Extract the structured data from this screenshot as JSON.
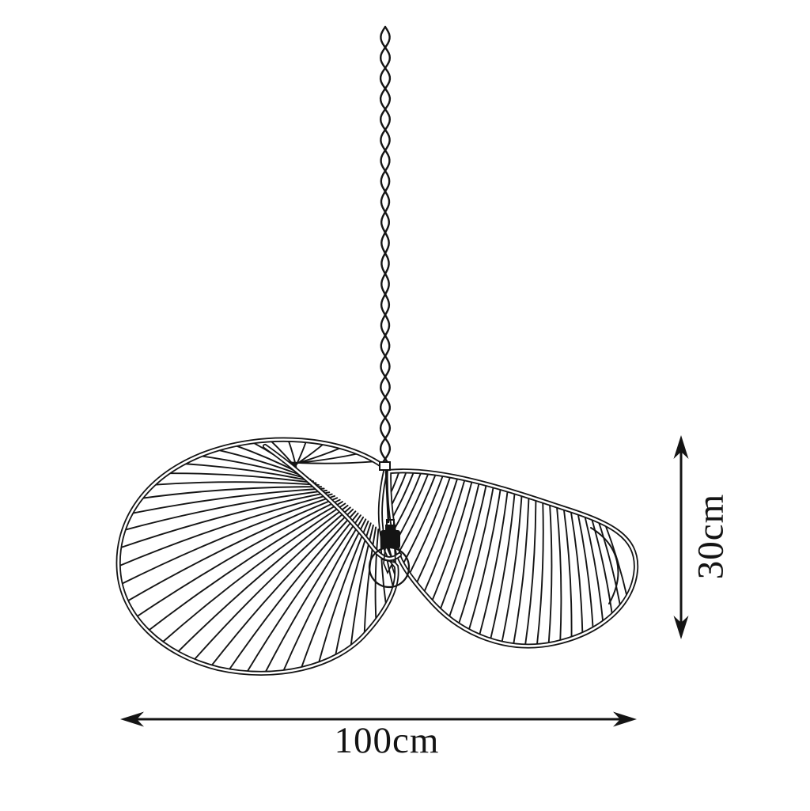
{
  "diagram": {
    "subject": "Pendant lamp line drawing - wavy two-lobe shade hanging from twisted cord with exposed bulb",
    "style": "black line art on white background",
    "line_color": "#141414",
    "background_color": "#ffffff",
    "dimensions": {
      "width": {
        "label": "100cm",
        "value": 100,
        "unit": "cm",
        "orientation": "horizontal"
      },
      "height": {
        "label": "30cm",
        "value": 30,
        "unit": "cm",
        "orientation": "vertical"
      }
    }
  }
}
